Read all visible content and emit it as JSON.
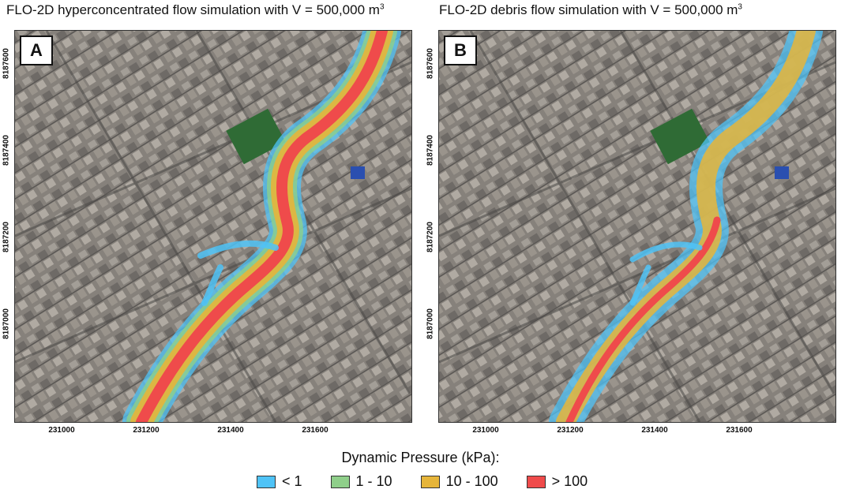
{
  "panel_a": {
    "title": "FLO-2D hyperconcentrated flow simulation with V = 500,000 m",
    "title_sup": "3",
    "label": "A"
  },
  "panel_b": {
    "title": "FLO-2D debris flow simulation with V = 500,000 m",
    "title_sup": "3",
    "label": "B"
  },
  "axes": {
    "y_ticks": [
      "8187600",
      "8187400",
      "8187200",
      "8187000"
    ],
    "x_ticks": [
      "231000",
      "231200",
      "231400",
      "231600"
    ]
  },
  "legend": {
    "title": "Dynamic Pressure (kPa):",
    "items": [
      {
        "label": "< 1",
        "color": "#4fc3f7"
      },
      {
        "label": "1 - 10",
        "color": "#8fcf8a"
      },
      {
        "label": "10 - 100",
        "color": "#e6b53a"
      },
      {
        "label": "> 100",
        "color": "#ef4b4b"
      }
    ]
  },
  "colors": {
    "lt1": "#4fc3f7",
    "r1_10": "#8fcf8a",
    "r10_100": "#e6b53a",
    "gt100": "#ef4b4b",
    "urban": "#8a8580",
    "field": "#2f6b35"
  }
}
